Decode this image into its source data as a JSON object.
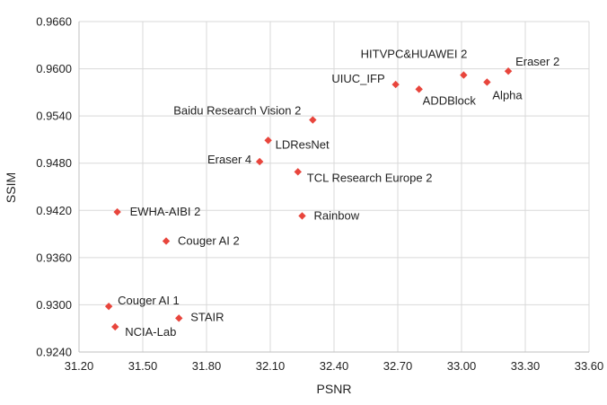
{
  "chart_data": {
    "type": "scatter",
    "title": "",
    "xlabel": "PSNR",
    "ylabel": "SSIM",
    "xlim": [
      31.2,
      33.6
    ],
    "ylim": [
      0.924,
      0.966
    ],
    "x_ticks": [
      "31.20",
      "31.50",
      "31.80",
      "32.10",
      "32.40",
      "32.70",
      "33.00",
      "33.30",
      "33.60"
    ],
    "y_ticks": [
      "0.9240",
      "0.9300",
      "0.9360",
      "0.9420",
      "0.9480",
      "0.9540",
      "0.9600",
      "0.9660"
    ],
    "grid": true,
    "marker_color": "#e8453c",
    "points": [
      {
        "label": "Eraser 2",
        "x": 33.22,
        "y": 0.9597
      },
      {
        "label": "HITVPC&HUAWEI 2",
        "x": 33.01,
        "y": 0.9592
      },
      {
        "label": "Alpha",
        "x": 33.12,
        "y": 0.9583
      },
      {
        "label": "UIUC_IFP",
        "x": 32.69,
        "y": 0.958
      },
      {
        "label": "ADDBlock",
        "x": 32.8,
        "y": 0.9574
      },
      {
        "label": "Baidu Research Vision 2",
        "x": 32.3,
        "y": 0.9535
      },
      {
        "label": "LDResNet",
        "x": 32.09,
        "y": 0.9509
      },
      {
        "label": "Eraser 4",
        "x": 32.05,
        "y": 0.9482
      },
      {
        "label": "TCL Research Europe 2",
        "x": 32.23,
        "y": 0.9469
      },
      {
        "label": "EWHA-AIBI 2",
        "x": 31.38,
        "y": 0.9418
      },
      {
        "label": "Rainbow",
        "x": 32.25,
        "y": 0.9413
      },
      {
        "label": "Couger AI 2",
        "x": 31.61,
        "y": 0.9381
      },
      {
        "label": "Couger AI 1",
        "x": 31.34,
        "y": 0.9298
      },
      {
        "label": "STAIR",
        "x": 31.67,
        "y": 0.9283
      },
      {
        "label": "NCIA-Lab",
        "x": 31.37,
        "y": 0.9272
      }
    ]
  }
}
